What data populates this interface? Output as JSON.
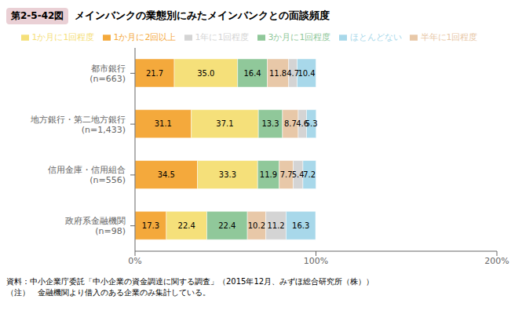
{
  "chart_data": {
    "type": "bar",
    "orientation": "horizontal",
    "stacked": true,
    "data_labels": true,
    "grid": false,
    "legend": "top",
    "title": "メインバンクの業態別にみたメインバンクとの面談頻度",
    "annotations": [
      "第2-5-42図",
      "資料：中小企業庁委託「中小企業の資金調達に関する調査」（2015年12月、みずほ総合研究所（株））",
      "（注）　金融機関より借入のある企業のみ集計している。"
    ],
    "categories": [
      "都市銀行\n(n=663)",
      "地方銀行・第二地方銀行\n(n=1,433)",
      "信用金庫・信用組合\n(n=556)",
      "政府系金融機関\n(n=98)"
    ],
    "xlim": [
      0,
      200
    ],
    "xticks": [
      {
        "value": 0,
        "label": "0%"
      },
      {
        "value": 100,
        "label": "100%"
      },
      {
        "value": 200,
        "label": "200%"
      }
    ],
    "series": [
      {
        "name": "1か月に2回以上",
        "color": "#F4A93C",
        "values": [
          21.7,
          31.1,
          34.5,
          17.3
        ],
        "value_labels": [
          "21.7",
          "31.1",
          "34.5",
          "17.3"
        ]
      },
      {
        "name": "1か月に1回程度",
        "color": "#F5E07A",
        "values": [
          35.0,
          37.1,
          33.3,
          22.4
        ],
        "value_labels": [
          "35.0",
          "37.1",
          "33.3",
          "22.4"
        ]
      },
      {
        "name": "3か月に1回程度",
        "color": "#90C89A",
        "values": [
          16.4,
          13.3,
          11.9,
          22.4
        ],
        "value_labels": [
          "16.4",
          "13.3",
          "11.9",
          "22.4"
        ]
      },
      {
        "name": "半年に1回程度",
        "color": "#E8C8A8",
        "values": [
          11.8,
          8.7,
          7.7,
          10.2
        ],
        "value_labels": [
          "11.8",
          "8.7",
          "7.7",
          "10.2"
        ]
      },
      {
        "name": "1年に1回程度",
        "color": "#D4D4D4",
        "values": [
          4.7,
          4.6,
          5.4,
          11.2
        ],
        "value_labels": [
          "4.7",
          "4.6",
          "5.4",
          "11.2"
        ]
      },
      {
        "name": "ほとんどない",
        "color": "#A8D8EA",
        "values": [
          10.4,
          5.3,
          7.2,
          16.3
        ],
        "value_labels": [
          "10.4",
          "5.3",
          "7.2",
          "16.3"
        ]
      }
    ]
  }
}
